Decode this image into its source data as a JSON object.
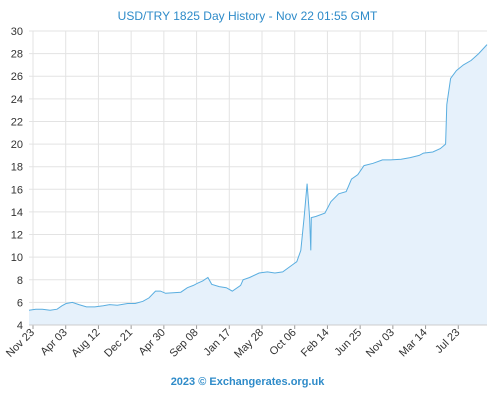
{
  "title": "USD/TRY 1825 Day History - Nov 22 01:55 GMT",
  "footer": "2023 © Exchangerates.org.uk",
  "colors": {
    "line": "#5aaee0",
    "fill": "#e6f1fb",
    "grid": "#e3e3e3",
    "title": "#2e8bc9"
  },
  "chart_data": {
    "type": "area",
    "title": "USD/TRY 1825 Day History - Nov 22 01:55 GMT",
    "xlabel": "",
    "ylabel": "",
    "ylim": [
      4,
      30
    ],
    "yticks": [
      4,
      6,
      8,
      10,
      12,
      14,
      16,
      18,
      20,
      22,
      24,
      26,
      28,
      30
    ],
    "xtick_labels": [
      "Nov 23",
      "Apr 03",
      "Aug 12",
      "Dec 21",
      "Apr 30",
      "Sep 08",
      "Jan 17",
      "May 28",
      "Oct 06",
      "Feb 14",
      "Jun 25",
      "Nov 03",
      "Mar 14",
      "Jul 23"
    ],
    "grid": true,
    "legend": "none",
    "x": [
      "2018-11-23",
      "2018-12-20",
      "2019-01-15",
      "2019-02-15",
      "2019-03-15",
      "2019-04-03",
      "2019-04-20",
      "2019-05-15",
      "2019-06-10",
      "2019-07-10",
      "2019-08-12",
      "2019-09-15",
      "2019-10-10",
      "2019-11-10",
      "2019-12-21",
      "2020-01-20",
      "2020-02-20",
      "2020-03-15",
      "2020-04-10",
      "2020-04-30",
      "2020-05-20",
      "2020-06-20",
      "2020-07-20",
      "2020-08-15",
      "2020-09-08",
      "2020-09-25",
      "2020-10-15",
      "2020-11-05",
      "2020-11-20",
      "2020-12-20",
      "2021-01-17",
      "2021-02-10",
      "2021-03-15",
      "2021-03-25",
      "2021-04-20",
      "2021-05-28",
      "2021-06-30",
      "2021-07-30",
      "2021-08-30",
      "2021-10-06",
      "2021-10-25",
      "2021-11-10",
      "2021-11-23",
      "2021-12-05",
      "2021-12-15",
      "2021-12-20",
      "2021-12-22",
      "2022-01-10",
      "2022-02-14",
      "2022-03-10",
      "2022-04-10",
      "2022-05-10",
      "2022-05-31",
      "2022-06-25",
      "2022-07-20",
      "2022-08-25",
      "2022-10-01",
      "2022-11-03",
      "2022-12-15",
      "2023-01-20",
      "2023-02-25",
      "2023-03-14",
      "2023-04-20",
      "2023-05-20",
      "2023-06-10",
      "2023-06-15",
      "2023-06-30",
      "2023-07-23",
      "2023-08-20",
      "2023-09-20",
      "2023-10-20",
      "2023-11-22"
    ],
    "values": [
      5.3,
      5.4,
      5.4,
      5.3,
      5.4,
      5.7,
      5.9,
      6.0,
      5.8,
      5.6,
      5.6,
      5.7,
      5.8,
      5.75,
      5.9,
      5.9,
      6.1,
      6.4,
      7.0,
      7.0,
      6.8,
      6.85,
      6.9,
      7.3,
      7.5,
      7.7,
      7.9,
      8.2,
      7.6,
      7.4,
      7.3,
      7.0,
      7.5,
      8.0,
      8.2,
      8.6,
      8.7,
      8.6,
      8.7,
      9.3,
      9.6,
      10.6,
      13.5,
      16.5,
      13.5,
      10.6,
      13.5,
      13.6,
      13.9,
      14.9,
      15.6,
      15.8,
      16.9,
      17.3,
      18.1,
      18.3,
      18.6,
      18.6,
      18.65,
      18.8,
      19.0,
      19.2,
      19.3,
      19.6,
      20.0,
      23.5,
      25.8,
      26.5,
      27.0,
      27.4,
      28.0,
      28.8
    ]
  }
}
